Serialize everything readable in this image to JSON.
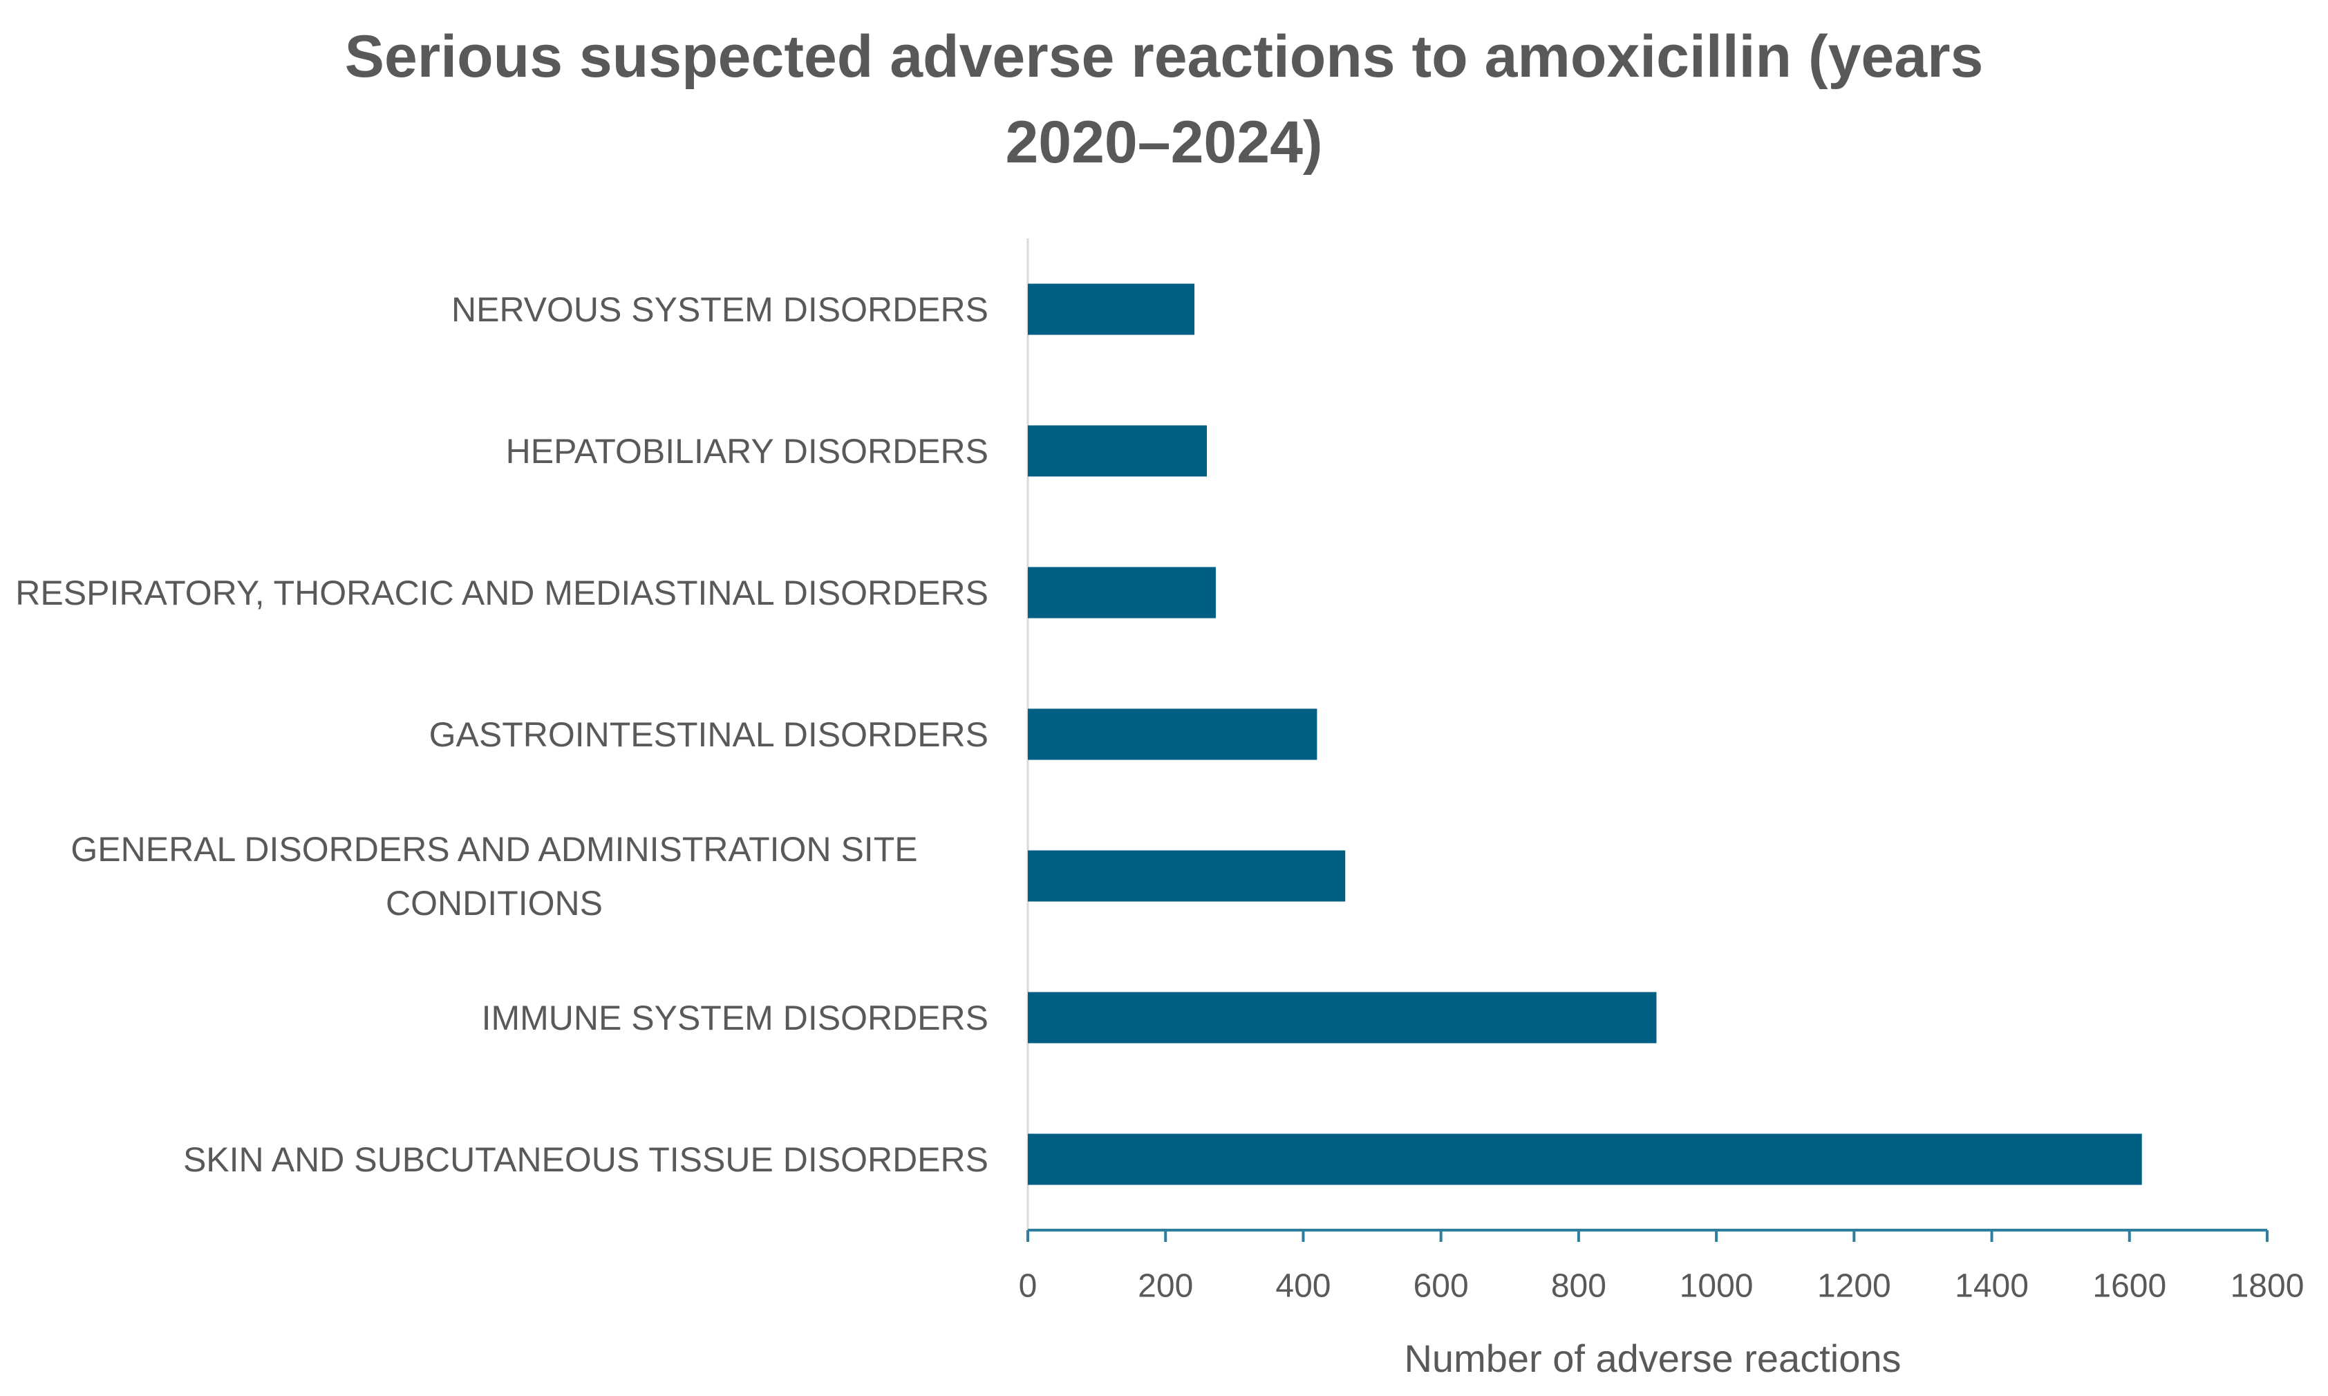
{
  "chart_data": {
    "type": "bar",
    "orientation": "horizontal",
    "title": "Serious suspected adverse reactions to amoxicillin (years 2020–2024)",
    "x_label": "Number of adverse reactions",
    "categories": [
      "NERVOUS SYSTEM DISORDERS",
      "HEPATOBILIARY DISORDERS",
      "RESPIRATORY, THORACIC AND MEDIASTINAL DISORDERS",
      "GASTROINTESTINAL DISORDERS",
      "GENERAL DISORDERS AND ADMINISTRATION SITE CONDITIONS",
      "IMMUNE SYSTEM DISORDERS",
      "SKIN AND SUBCUTANEOUS TISSUE DISORDERS"
    ],
    "values": [
      242,
      260,
      273,
      420,
      461,
      913,
      1618
    ],
    "color": "#005f83",
    "xlim": [
      0,
      1800
    ],
    "xticks": [
      0,
      200,
      400,
      600,
      800,
      1000,
      1200,
      1400,
      1600,
      1800
    ],
    "grid": false
  }
}
